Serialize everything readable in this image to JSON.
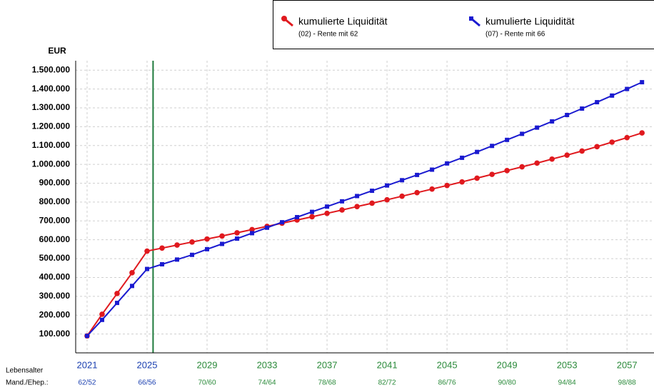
{
  "chart_data": {
    "type": "line",
    "y_label": "EUR",
    "x": [
      2021,
      2022,
      2023,
      2024,
      2025,
      2026,
      2027,
      2028,
      2029,
      2030,
      2031,
      2032,
      2033,
      2034,
      2035,
      2036,
      2037,
      2038,
      2039,
      2040,
      2041,
      2042,
      2043,
      2044,
      2045,
      2046,
      2047,
      2048,
      2049,
      2050,
      2051,
      2052,
      2053,
      2054,
      2055,
      2056,
      2057,
      2058
    ],
    "series": [
      {
        "name": "kumulierte Liquidität",
        "subtitle": "(02) - Rente mit 62",
        "color": "#e0191e",
        "marker": "circle",
        "values": [
          90000,
          205000,
          315000,
          425000,
          540000,
          556000,
          572000,
          588000,
          604000,
          620000,
          637000,
          654000,
          671000,
          688000,
          705000,
          722000,
          740000,
          758000,
          776000,
          794000,
          812000,
          831000,
          850000,
          869000,
          888000,
          907000,
          927000,
          947000,
          967000,
          987000,
          1007000,
          1028000,
          1049000,
          1071000,
          1094000,
          1118000,
          1142000,
          1167000
        ]
      },
      {
        "name": "kumulierte Liquidität",
        "subtitle": "(07) - Rente mit 66",
        "color": "#1a1ad0",
        "marker": "square",
        "values": [
          90000,
          175000,
          265000,
          355000,
          445000,
          470000,
          495000,
          520000,
          550000,
          578000,
          606000,
          635000,
          664000,
          693000,
          720000,
          748000,
          776000,
          804000,
          832000,
          860000,
          888000,
          916000,
          944000,
          972000,
          1005000,
          1035000,
          1066000,
          1098000,
          1130000,
          1162000,
          1195000,
          1228000,
          1262000,
          1296000,
          1330000,
          1365000,
          1400000,
          1436000
        ]
      }
    ],
    "xlim": [
      2020.24,
      2058.8
    ],
    "xticks": [
      2021,
      2025,
      2029,
      2033,
      2037,
      2041,
      2045,
      2049,
      2053,
      2057
    ],
    "xtick_label_colors": [
      "#1a3fb0",
      "#1a3fb0",
      "#2a8a3a",
      "#2a8a3a",
      "#2a8a3a",
      "#2a8a3a",
      "#2a8a3a",
      "#2a8a3a",
      "#2a8a3a",
      "#2a8a3a"
    ],
    "age_row_labels": [
      "Lebensalter",
      "Mand./Ehep.:"
    ],
    "age_labels": [
      "62/52",
      "66/56",
      "70/60",
      "74/64",
      "78/68",
      "82/72",
      "86/76",
      "90/80",
      "94/84",
      "98/88"
    ],
    "marker_line": {
      "x": 2025.4,
      "color": "#1e7a3c"
    },
    "ylim": [
      0,
      1550000
    ],
    "yticks": [
      {
        "value": 100000,
        "label": "100.000"
      },
      {
        "value": 200000,
        "label": "200.000"
      },
      {
        "value": 300000,
        "label": "300.000"
      },
      {
        "value": 400000,
        "label": "400.000"
      },
      {
        "value": 500000,
        "label": "500.000"
      },
      {
        "value": 600000,
        "label": "600.000"
      },
      {
        "value": 700000,
        "label": "700.000"
      },
      {
        "value": 800000,
        "label": "800.000"
      },
      {
        "value": 900000,
        "label": "900.000"
      },
      {
        "value": 1000000,
        "label": "1.000.000"
      },
      {
        "value": 1100000,
        "label": "1.100.000"
      },
      {
        "value": 1200000,
        "label": "1.200.000"
      },
      {
        "value": 1300000,
        "label": "1.300.000"
      },
      {
        "value": 1400000,
        "label": "1.400.000"
      },
      {
        "value": 1500000,
        "label": "1.500.000"
      }
    ],
    "grid": true
  }
}
